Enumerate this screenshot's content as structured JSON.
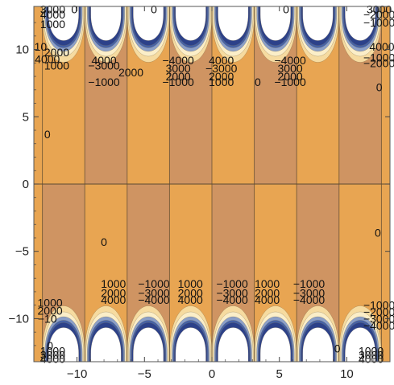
{
  "chart_data": {
    "type": "contour",
    "title": "",
    "xlabel": "",
    "ylabel": "",
    "xlim": [
      -13.2,
      13.2
    ],
    "ylim": [
      -13.2,
      13.2
    ],
    "x_ticks": [
      {
        "value": -10,
        "label": "−10"
      },
      {
        "value": -5,
        "label": "−5"
      },
      {
        "value": 0,
        "label": "0"
      },
      {
        "value": 5,
        "label": "5"
      },
      {
        "value": 10,
        "label": "10"
      }
    ],
    "y_ticks": [
      {
        "value": 10,
        "label": "10"
      },
      {
        "value": 5,
        "label": "5"
      },
      {
        "value": 0,
        "label": "0"
      },
      {
        "value": -5,
        "label": "−5"
      },
      {
        "value": -10,
        "label": "−10"
      }
    ],
    "contour_levels": [
      -4000,
      -3000,
      -2000,
      -1000,
      0,
      1000,
      2000,
      3000,
      4000
    ],
    "colors": {
      "base": "#e8a552",
      "alt_band": "#cf9462",
      "mid": "#f0c07a",
      "light": "#f6dba0",
      "pale": "#fbeec8",
      "blue_light": "#8b9fc8",
      "blue": "#4662a6",
      "blue_dark": "#2c418a"
    },
    "vertical_lines_x": [
      -12.566,
      -9.425,
      -6.283,
      -3.142,
      0.0,
      3.142,
      6.283,
      9.425,
      12.566
    ],
    "contour_labels": [
      {
        "text": "0",
        "x": -10.2,
        "y": 13.0
      },
      {
        "text": "0",
        "x": -4.3,
        "y": 13.0
      },
      {
        "text": "0",
        "x": 5.5,
        "y": 13.0
      },
      {
        "text": "3000",
        "x": -11.8,
        "y": 13.0
      },
      {
        "text": "4000",
        "x": -11.8,
        "y": 12.6
      },
      {
        "text": "1000",
        "x": -11.8,
        "y": 11.9
      },
      {
        "text": "10",
        "x": -12.7,
        "y": 10.2
      },
      {
        "text": "2000",
        "x": -11.5,
        "y": 9.8
      },
      {
        "text": "1000",
        "x": -11.5,
        "y": 8.8
      },
      {
        "text": "0",
        "x": -12.2,
        "y": 3.7
      },
      {
        "text": "4000",
        "x": -8.0,
        "y": 9.2
      },
      {
        "text": "−3000",
        "x": -8.0,
        "y": 8.8
      },
      {
        "text": "2000",
        "x": -6.0,
        "y": 8.3
      },
      {
        "text": "−1000",
        "x": -8.0,
        "y": 7.6
      },
      {
        "text": "−4000",
        "x": -2.5,
        "y": 9.2
      },
      {
        "text": "3000",
        "x": -2.5,
        "y": 8.6
      },
      {
        "text": "2000",
        "x": -2.5,
        "y": 8.0
      },
      {
        "text": "−1000",
        "x": -2.5,
        "y": 7.6
      },
      {
        "text": "4000",
        "x": 0.7,
        "y": 9.2
      },
      {
        "text": "−3000",
        "x": 0.7,
        "y": 8.6
      },
      {
        "text": "2000",
        "x": 0.7,
        "y": 8.0
      },
      {
        "text": "1000",
        "x": 0.7,
        "y": 7.6
      },
      {
        "text": "0",
        "x": 3.4,
        "y": 7.6
      },
      {
        "text": "−4000",
        "x": 5.8,
        "y": 9.2
      },
      {
        "text": "3000",
        "x": 5.8,
        "y": 8.6
      },
      {
        "text": "2000",
        "x": 5.8,
        "y": 8.0
      },
      {
        "text": "−1000",
        "x": 5.8,
        "y": 7.6
      },
      {
        "text": "4000",
        "x": 12.6,
        "y": 10.2
      },
      {
        "text": "0",
        "x": 12.4,
        "y": 7.2
      },
      {
        "text": "1000",
        "x": -7.3,
        "y": -7.4
      },
      {
        "text": "2000",
        "x": -7.3,
        "y": -8.1
      },
      {
        "text": "4000",
        "x": -7.3,
        "y": -8.6
      },
      {
        "text": "−1000",
        "x": -4.3,
        "y": -7.4
      },
      {
        "text": "−3000",
        "x": -4.3,
        "y": -8.1
      },
      {
        "text": "−4000",
        "x": -4.3,
        "y": -8.6
      },
      {
        "text": "1000",
        "x": -1.6,
        "y": -7.4
      },
      {
        "text": "2000",
        "x": -1.6,
        "y": -8.1
      },
      {
        "text": "4000",
        "x": -1.6,
        "y": -8.6
      },
      {
        "text": "−1000",
        "x": 1.5,
        "y": -7.4
      },
      {
        "text": "−3000",
        "x": 1.5,
        "y": -8.1
      },
      {
        "text": "−4000",
        "x": 1.5,
        "y": -8.6
      },
      {
        "text": "1000",
        "x": 4.1,
        "y": -7.4
      },
      {
        "text": "2000",
        "x": 4.1,
        "y": -8.1
      },
      {
        "text": "4000",
        "x": 4.1,
        "y": -8.6
      },
      {
        "text": "−1000",
        "x": 7.2,
        "y": -7.4
      },
      {
        "text": "−3000",
        "x": 7.2,
        "y": -8.1
      },
      {
        "text": "−4000",
        "x": 7.2,
        "y": -8.6
      },
      {
        "text": "0",
        "x": -8.0,
        "y": -4.3
      },
      {
        "text": "0",
        "x": 12.3,
        "y": -3.6
      },
      {
        "text": "1000",
        "x": -12.0,
        "y": -8.8
      },
      {
        "text": "2000",
        "x": -12.0,
        "y": -9.4
      },
      {
        "text": "−10",
        "x": -12.2,
        "y": -10.0
      },
      {
        "text": "0",
        "x": -12.0,
        "y": -12.0
      },
      {
        "text": "1000",
        "x": -11.8,
        "y": -12.4
      },
      {
        "text": "3000",
        "x": -11.8,
        "y": -12.7
      },
      {
        "text": "4000",
        "x": -11.8,
        "y": -13.0
      },
      {
        "text": "0",
        "x": 9.3,
        "y": -12.2
      },
      {
        "text": "1000",
        "x": 11.8,
        "y": -12.4
      },
      {
        "text": "3000",
        "x": 11.8,
        "y": -12.7
      },
      {
        "text": "4000",
        "x": 11.8,
        "y": -13.0
      },
      {
        "text": "−1000",
        "x": 12.4,
        "y": -9.0
      },
      {
        "text": "−2000",
        "x": 12.4,
        "y": -9.5
      },
      {
        "text": "−3000",
        "x": 12.4,
        "y": -10.0
      },
      {
        "text": "−4000",
        "x": 12.4,
        "y": -10.5
      },
      {
        "text": "−1000",
        "x": 12.4,
        "y": 12.0
      },
      {
        "text": "−2000",
        "x": 12.4,
        "y": 12.6
      },
      {
        "text": "3000",
        "x": 12.4,
        "y": 13.0
      },
      {
        "text": "−1000",
        "x": 12.4,
        "y": 9.4
      },
      {
        "text": "−2000",
        "x": 12.4,
        "y": 9.0
      },
      {
        "text": "4000",
        "x": -12.2,
        "y": 9.3
      }
    ]
  }
}
